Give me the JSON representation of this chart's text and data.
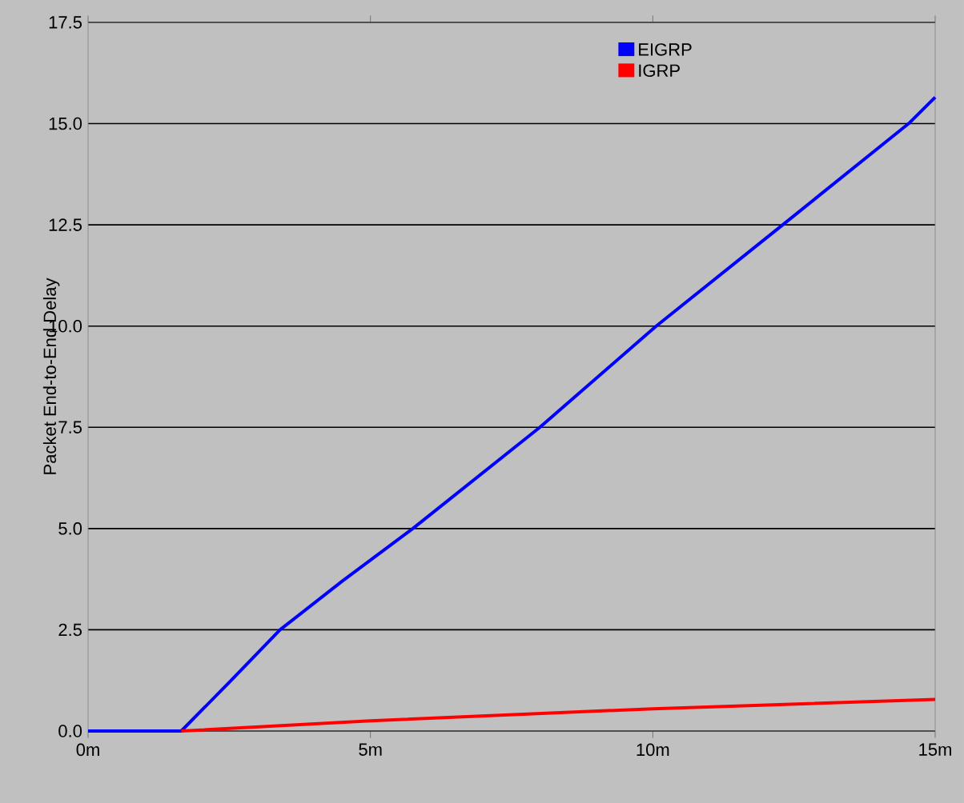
{
  "chart_data": {
    "type": "line",
    "ylabel": "Packet End-to-End Delay",
    "xlim": [
      0,
      15
    ],
    "xticks": [
      {
        "value": 0,
        "label": "0m"
      },
      {
        "value": 5,
        "label": "5m"
      },
      {
        "value": 10,
        "label": "10m"
      },
      {
        "value": 15,
        "label": "15m"
      }
    ],
    "ylim": [
      0,
      17.5
    ],
    "yticks": [
      {
        "value": 0,
        "label": "0.0"
      },
      {
        "value": 2.5,
        "label": "2.5"
      },
      {
        "value": 5,
        "label": "5.0"
      },
      {
        "value": 7.5,
        "label": "7.5"
      },
      {
        "value": 10,
        "label": "10.0"
      },
      {
        "value": 12.5,
        "label": "12.5"
      },
      {
        "value": 15,
        "label": "15.0"
      },
      {
        "value": 17.5,
        "label": "17.5"
      }
    ],
    "grid": "y",
    "legend": "top right",
    "marker": "none",
    "line_style": "solid",
    "series": [
      {
        "name": "EIGRP",
        "color": "#0000ff",
        "x": [
          0,
          1.65,
          2.5,
          3.4,
          4.5,
          5.75,
          8.0,
          10.06,
          12.3,
          14.53,
          15
        ],
        "values": [
          0,
          0,
          1.2,
          2.5,
          3.7,
          5.0,
          7.5,
          10.0,
          12.5,
          15.0,
          15.65
        ]
      },
      {
        "name": "IGRP",
        "color": "#ff0000",
        "x": [
          1.65,
          5,
          10,
          15
        ],
        "values": [
          0,
          0.25,
          0.55,
          0.78
        ]
      }
    ]
  }
}
